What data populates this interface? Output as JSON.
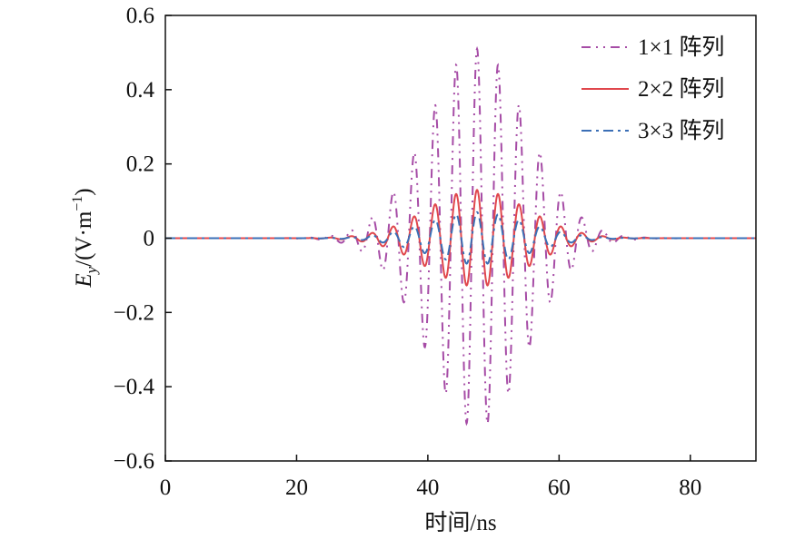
{
  "chart_data": {
    "type": "line",
    "xlabel": "时间/ns",
    "ylabel": "E_y /(V·m^-1)",
    "ylabel_parts": {
      "symbol": "E",
      "sub": "y",
      "unit_open": "/(V·m",
      "unit_exp": "−1",
      "unit_close": ")"
    },
    "xlim": [
      0,
      90
    ],
    "ylim": [
      -0.6,
      0.6
    ],
    "xticks": [
      0,
      20,
      40,
      60,
      80
    ],
    "xtick_labels": [
      "0",
      "20",
      "40",
      "60",
      "80"
    ],
    "yticks": [
      0.6,
      0.4,
      0.2,
      0,
      -0.2,
      -0.4,
      -0.6
    ],
    "ytick_labels": [
      "0.6",
      "0.4",
      "0.2",
      "0",
      "−0.2",
      "−0.4",
      "−0.6"
    ],
    "grid": false,
    "legend_position": "top-right",
    "pulse_model": {
      "center_ns": 47.5,
      "period_ns": 3.2,
      "gaussian_sigma_ns": 7.6
    },
    "series": [
      {
        "name": "1×1 阵列",
        "peak_amplitude": 0.51,
        "color": "#a64ca6",
        "style": "dash-dot-dot"
      },
      {
        "name": "2×2 阵列",
        "peak_amplitude": 0.13,
        "color": "#e0474c",
        "style": "solid"
      },
      {
        "name": "3×3 阵列",
        "peak_amplitude": 0.07,
        "color": "#3b6fb6",
        "style": "dash-dot"
      }
    ]
  }
}
